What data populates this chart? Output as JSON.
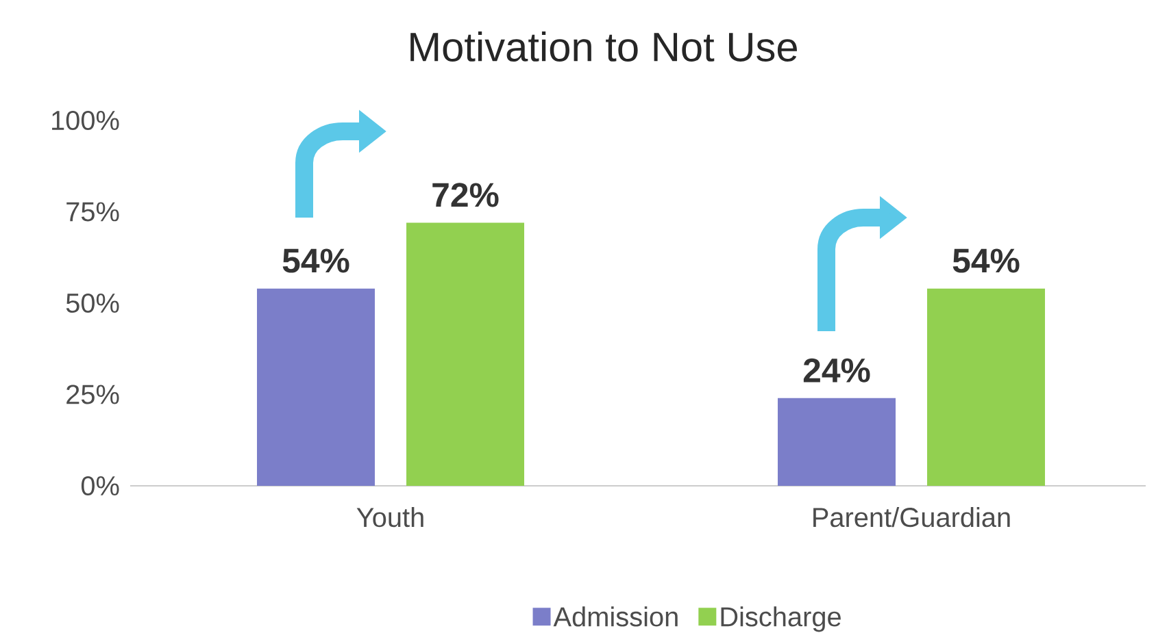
{
  "chart_data": {
    "type": "bar",
    "title": "Motivation to Not Use",
    "categories": [
      "Youth",
      "Parent/Guardian"
    ],
    "series": [
      {
        "name": "Admission",
        "color": "#7b7ec9",
        "values": [
          54,
          24
        ],
        "value_labels": [
          "54%",
          "24%"
        ]
      },
      {
        "name": "Discharge",
        "color": "#92d050",
        "values": [
          72,
          54
        ],
        "value_labels": [
          "72%",
          "54%"
        ]
      }
    ],
    "ylim": [
      0,
      100
    ],
    "yticks": [
      {
        "value": 0,
        "label": "0%"
      },
      {
        "value": 25,
        "label": "25%"
      },
      {
        "value": 50,
        "label": "50%"
      },
      {
        "value": 75,
        "label": "75%"
      },
      {
        "value": 100,
        "label": "100%"
      }
    ],
    "grid": false,
    "legend": "bottom"
  }
}
